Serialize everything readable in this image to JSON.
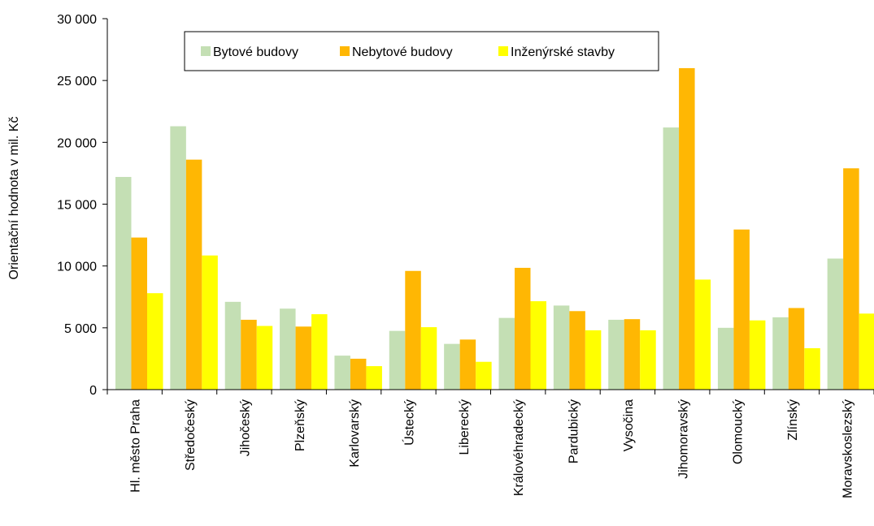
{
  "chart_data": {
    "type": "bar",
    "title": "",
    "xlabel": "",
    "ylabel": "Orientační hodnota v mil. Kč",
    "ylim": [
      0,
      30000
    ],
    "yticks": [
      0,
      5000,
      10000,
      15000,
      20000,
      25000,
      30000
    ],
    "ytick_labels": [
      "0",
      "5 000",
      "10 000",
      "15 000",
      "20 000",
      "25 000",
      "30 000"
    ],
    "grid": false,
    "legend_position": "top-left",
    "categories": [
      "Hl. město Praha",
      "Středočeský",
      "Jihočeský",
      "Plzeňský",
      "Karlovarský",
      "Ústecký",
      "Liberecký",
      "Královéhradecký",
      "Pardubický",
      "Vysočina",
      "Jihomoravský",
      "Olomoucký",
      "Zlínský",
      "Moravskoslezský"
    ],
    "series": [
      {
        "name": "Bytové budovy",
        "color": "#c4dfb4",
        "values": [
          17200,
          21300,
          7100,
          6550,
          2750,
          4750,
          3700,
          5800,
          6800,
          5650,
          21200,
          5000,
          5850,
          10600
        ]
      },
      {
        "name": "Nebytové budovy",
        "color": "#ffb703",
        "values": [
          12300,
          18600,
          5650,
          5100,
          2500,
          9600,
          4050,
          9850,
          6350,
          5700,
          26000,
          12950,
          6600,
          17900
        ]
      },
      {
        "name": "Inženýrské stavby",
        "color": "#ffff00",
        "values": [
          7800,
          10850,
          5150,
          6100,
          1900,
          5050,
          2250,
          7150,
          4800,
          4800,
          8900,
          5600,
          3350,
          6150
        ]
      }
    ]
  }
}
